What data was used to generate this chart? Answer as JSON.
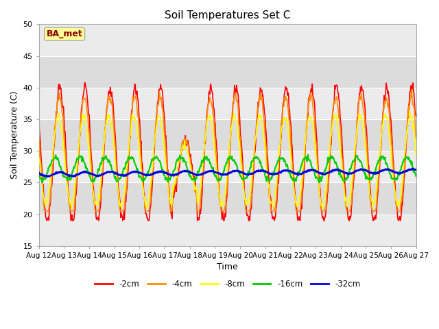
{
  "title": "Soil Temperatures Set C",
  "xlabel": "Time",
  "ylabel": "Soil Temperature (C)",
  "ylim": [
    15,
    50
  ],
  "yticks": [
    15,
    20,
    25,
    30,
    35,
    40,
    45,
    50
  ],
  "annotation_text": "BA_met",
  "annotation_color": "#8B0000",
  "annotation_bg": "#FFFF99",
  "annotation_border": "#AAAAAA",
  "series_colors": {
    "-2cm": "#FF0000",
    "-4cm": "#FF8C00",
    "-8cm": "#FFFF00",
    "-16cm": "#00CC00",
    "-32cm": "#0000DD"
  },
  "series_linewidths": {
    "-2cm": 1.2,
    "-4cm": 1.2,
    "-8cm": 1.2,
    "-16cm": 1.5,
    "-32cm": 2.0
  },
  "fig_bg_color": "#FFFFFF",
  "plot_bg_color": "#F0F0F0",
  "band_color_light": "#EBEBEB",
  "band_color_dark": "#DCDCDC",
  "grid_color": "#FFFFFF",
  "n_days": 15,
  "pts_per_day": 48,
  "start_day": 12,
  "start_month": "Aug"
}
